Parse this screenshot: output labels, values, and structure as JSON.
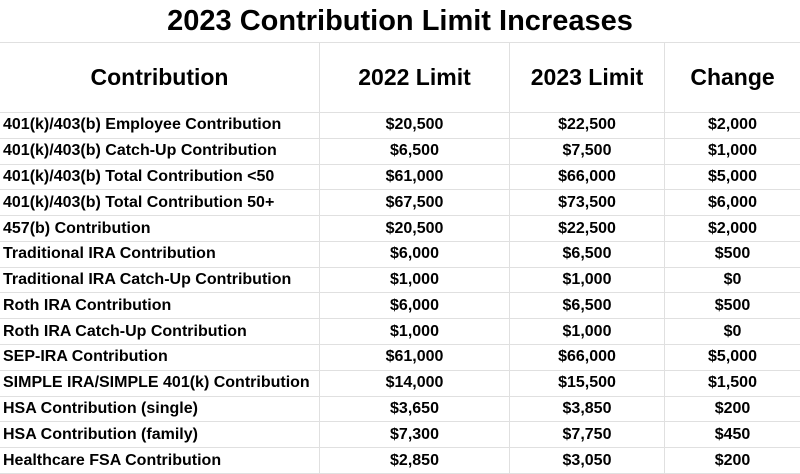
{
  "colors": {
    "background": "#ffffff",
    "border": "#e0e0e0",
    "text": "#000000"
  },
  "chart_data": {
    "type": "table",
    "title": "2023 Contribution Limit Increases",
    "columns": [
      "Contribution",
      "2022 Limit",
      "2023 Limit",
      "Change"
    ],
    "rows": [
      {
        "contribution": "401(k)/403(b) Employee Contribution",
        "limit_2022": "$20,500",
        "limit_2023": "$22,500",
        "change": "$2,000"
      },
      {
        "contribution": "401(k)/403(b) Catch-Up Contribution",
        "limit_2022": "$6,500",
        "limit_2023": "$7,500",
        "change": "$1,000"
      },
      {
        "contribution": "401(k)/403(b) Total Contribution <50",
        "limit_2022": "$61,000",
        "limit_2023": "$66,000",
        "change": "$5,000"
      },
      {
        "contribution": "401(k)/403(b) Total Contribution 50+",
        "limit_2022": "$67,500",
        "limit_2023": "$73,500",
        "change": "$6,000"
      },
      {
        "contribution": "457(b) Contribution",
        "limit_2022": "$20,500",
        "limit_2023": "$22,500",
        "change": "$2,000"
      },
      {
        "contribution": "Traditional IRA Contribution",
        "limit_2022": "$6,000",
        "limit_2023": "$6,500",
        "change": "$500"
      },
      {
        "contribution": "Traditional IRA Catch-Up Contribution",
        "limit_2022": "$1,000",
        "limit_2023": "$1,000",
        "change": "$0"
      },
      {
        "contribution": "Roth IRA Contribution",
        "limit_2022": "$6,000",
        "limit_2023": "$6,500",
        "change": "$500"
      },
      {
        "contribution": "Roth IRA Catch-Up Contribution",
        "limit_2022": "$1,000",
        "limit_2023": "$1,000",
        "change": "$0"
      },
      {
        "contribution": "SEP-IRA Contribution",
        "limit_2022": "$61,000",
        "limit_2023": "$66,000",
        "change": "$5,000"
      },
      {
        "contribution": "SIMPLE IRA/SIMPLE 401(k) Contribution",
        "limit_2022": "$14,000",
        "limit_2023": "$15,500",
        "change": "$1,500"
      },
      {
        "contribution": "HSA Contribution (single)",
        "limit_2022": "$3,650",
        "limit_2023": "$3,850",
        "change": "$200"
      },
      {
        "contribution": "HSA Contribution (family)",
        "limit_2022": "$7,300",
        "limit_2023": "$7,750",
        "change": "$450"
      },
      {
        "contribution": "Healthcare FSA Contribution",
        "limit_2022": "$2,850",
        "limit_2023": "$3,050",
        "change": "$200"
      }
    ]
  }
}
